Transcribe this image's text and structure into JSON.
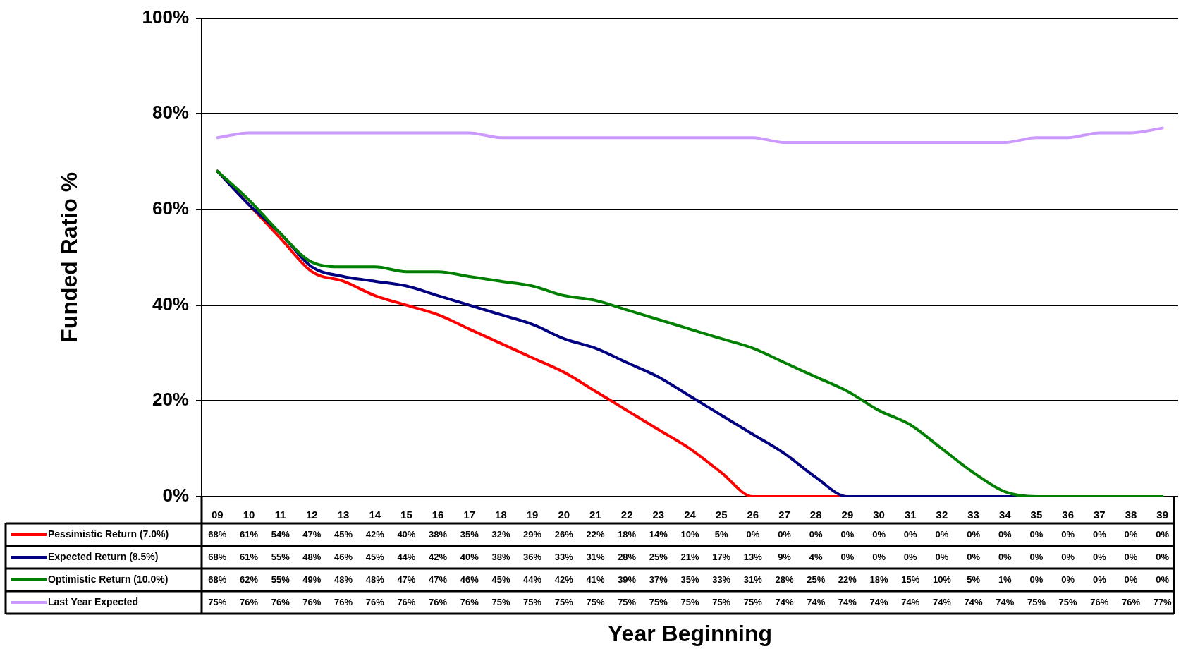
{
  "chart_data": {
    "type": "line",
    "xlabel": "Year Beginning",
    "ylabel": "Funded Ratio %",
    "categories": [
      "09",
      "10",
      "11",
      "12",
      "13",
      "14",
      "15",
      "16",
      "17",
      "18",
      "19",
      "20",
      "21",
      "22",
      "23",
      "24",
      "25",
      "26",
      "27",
      "28",
      "29",
      "30",
      "31",
      "32",
      "33",
      "34",
      "35",
      "36",
      "37",
      "38",
      "39"
    ],
    "ylim": [
      0,
      100
    ],
    "yticks": [
      {
        "value": 0,
        "label": "0%"
      },
      {
        "value": 20,
        "label": "20%"
      },
      {
        "value": 40,
        "label": "40%"
      },
      {
        "value": 60,
        "label": "60%"
      },
      {
        "value": 80,
        "label": "80%"
      },
      {
        "value": 100,
        "label": "100%"
      }
    ],
    "grid": "y",
    "legend": "bottom",
    "marker": "none",
    "line_style": "solid",
    "series": [
      {
        "name": "Pessimistic Return (7.0%)",
        "color": "#ff0000",
        "values": [
          68,
          61,
          54,
          47,
          45,
          42,
          40,
          38,
          35,
          32,
          29,
          26,
          22,
          18,
          14,
          10,
          5,
          0,
          0,
          0,
          0,
          null,
          null,
          null,
          null,
          null,
          null,
          null,
          null,
          null,
          null
        ],
        "value_labels": [
          "68%",
          "61%",
          "54%",
          "47%",
          "45%",
          "42%",
          "40%",
          "38%",
          "35%",
          "32%",
          "29%",
          "26%",
          "22%",
          "18%",
          "14%",
          "10%",
          "5%",
          "0%",
          "0%",
          "0%",
          "0%",
          "0%",
          "0%",
          "0%",
          "0%",
          "0%",
          "0%",
          "0%",
          "0%",
          "0%",
          "0%"
        ]
      },
      {
        "name": "Expected Return (8.5%)",
        "color": "#000080",
        "values": [
          68,
          61,
          55,
          48,
          46,
          45,
          44,
          42,
          40,
          38,
          36,
          33,
          31,
          28,
          25,
          21,
          17,
          13,
          9,
          4,
          0,
          0,
          0,
          0,
          0,
          0,
          0,
          null,
          null,
          null,
          null
        ],
        "value_labels": [
          "68%",
          "61%",
          "55%",
          "48%",
          "46%",
          "45%",
          "44%",
          "42%",
          "40%",
          "38%",
          "36%",
          "33%",
          "31%",
          "28%",
          "25%",
          "21%",
          "17%",
          "13%",
          "9%",
          "4%",
          "0%",
          "0%",
          "0%",
          "0%",
          "0%",
          "0%",
          "0%",
          "0%",
          "0%",
          "0%",
          "0%"
        ]
      },
      {
        "name": "Optimistic Return (10.0%)",
        "color": "#008000",
        "values": [
          68,
          62,
          55,
          49,
          48,
          48,
          47,
          47,
          46,
          45,
          44,
          42,
          41,
          39,
          37,
          35,
          33,
          31,
          28,
          25,
          22,
          18,
          15,
          10,
          5,
          1,
          0,
          0,
          0,
          0,
          0
        ],
        "value_labels": [
          "68%",
          "62%",
          "55%",
          "49%",
          "48%",
          "48%",
          "47%",
          "47%",
          "46%",
          "45%",
          "44%",
          "42%",
          "41%",
          "39%",
          "37%",
          "35%",
          "33%",
          "31%",
          "28%",
          "25%",
          "22%",
          "18%",
          "15%",
          "10%",
          "5%",
          "1%",
          "0%",
          "0%",
          "0%",
          "0%",
          "0%"
        ]
      },
      {
        "name": "Last Year Expected",
        "color": "#cc99ff",
        "values": [
          75,
          76,
          76,
          76,
          76,
          76,
          76,
          76,
          76,
          75,
          75,
          75,
          75,
          75,
          75,
          75,
          75,
          75,
          74,
          74,
          74,
          74,
          74,
          74,
          74,
          74,
          75,
          75,
          76,
          76,
          77
        ],
        "value_labels": [
          "75%",
          "76%",
          "76%",
          "76%",
          "76%",
          "76%",
          "76%",
          "76%",
          "76%",
          "75%",
          "75%",
          "75%",
          "75%",
          "75%",
          "75%",
          "75%",
          "75%",
          "75%",
          "74%",
          "74%",
          "74%",
          "74%",
          "74%",
          "74%",
          "74%",
          "74%",
          "75%",
          "75%",
          "76%",
          "76%",
          "77%"
        ]
      }
    ]
  }
}
